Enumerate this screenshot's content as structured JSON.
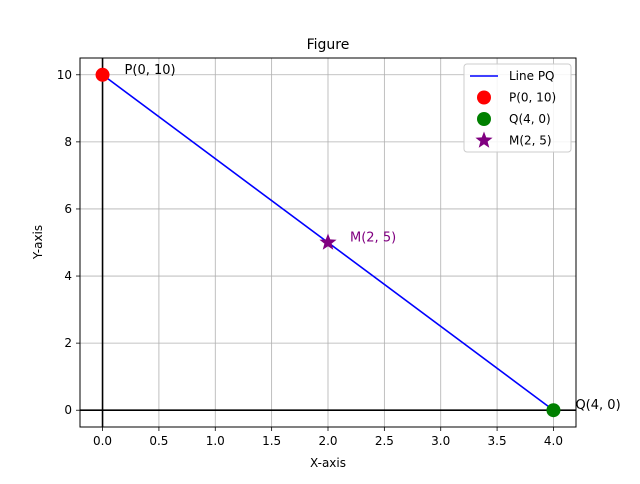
{
  "chart_data": {
    "type": "line",
    "title": "Figure",
    "xlabel": "X-axis",
    "ylabel": "Y-axis",
    "xlim": [
      -0.2,
      4.2
    ],
    "ylim": [
      -0.5,
      10.5
    ],
    "x_ticks": [
      0.0,
      0.5,
      1.0,
      1.5,
      2.0,
      2.5,
      3.0,
      3.5,
      4.0
    ],
    "x_tick_labels": [
      "0.0",
      "0.5",
      "1.0",
      "1.5",
      "2.0",
      "2.5",
      "3.0",
      "3.5",
      "4.0"
    ],
    "y_ticks": [
      0,
      2,
      4,
      6,
      8,
      10
    ],
    "y_tick_labels": [
      "0",
      "2",
      "4",
      "6",
      "8",
      "10"
    ],
    "grid": true,
    "legend_position": "top-right",
    "reference_lines": [
      {
        "orientation": "horizontal",
        "y": 0,
        "color": "#000000"
      },
      {
        "orientation": "vertical",
        "x": 0,
        "color": "#000000"
      }
    ],
    "series": [
      {
        "name": "Line PQ",
        "kind": "line",
        "x": [
          0,
          4
        ],
        "y": [
          10,
          0
        ],
        "color": "#0000ff"
      },
      {
        "name": "P(0, 10)",
        "kind": "scatter",
        "marker": "circle",
        "x": [
          0
        ],
        "y": [
          10
        ],
        "color": "#ff0000"
      },
      {
        "name": "Q(4, 0)",
        "kind": "scatter",
        "marker": "circle",
        "x": [
          4
        ],
        "y": [
          0
        ],
        "color": "#008000"
      },
      {
        "name": "M(2, 5)",
        "kind": "scatter",
        "marker": "star",
        "x": [
          2
        ],
        "y": [
          5
        ],
        "color": "#800080"
      }
    ],
    "annotations": [
      {
        "text": "P(0, 10)",
        "x": 0,
        "y": 10,
        "color": "#000000"
      },
      {
        "text": "M(2, 5)",
        "x": 2,
        "y": 5,
        "color": "#800080"
      },
      {
        "text": "Q(4, 0)",
        "x": 4,
        "y": 0,
        "color": "#000000"
      }
    ]
  }
}
